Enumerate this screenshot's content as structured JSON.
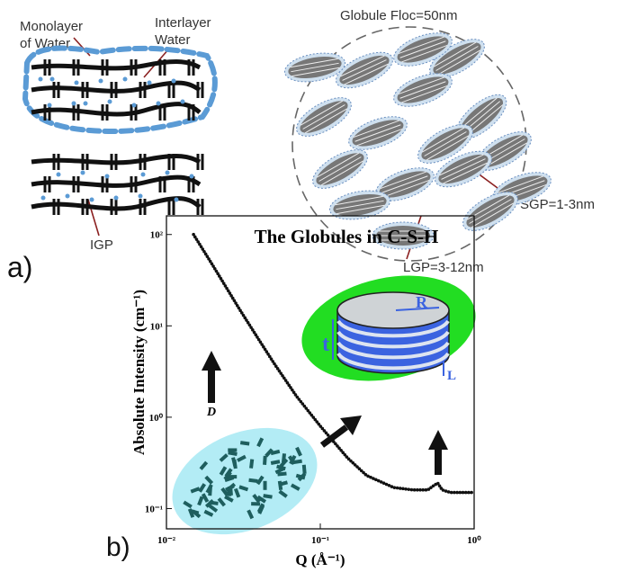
{
  "diagram": {
    "panel_label": "a)",
    "monolayer_label": [
      "Monolayer",
      "of Water"
    ],
    "interlayer_label": [
      "Interlayer",
      "Water"
    ],
    "igp_label": "IGP",
    "floc_label": "Globule Floc=50nm",
    "sgp_label": "SGP=1-3nm",
    "lgp_label": "LGP=3-12nm"
  },
  "chart_data": {
    "type": "line",
    "panel_label": "b)",
    "title": "The Globules in C-S-H",
    "x_label": "Q (Å⁻¹)",
    "y_label": "Absolute Intensity (cm⁻¹)",
    "x": [
      0.015,
      0.02,
      0.03,
      0.04,
      0.05,
      0.07,
      0.1,
      0.15,
      0.2,
      0.3,
      0.4,
      0.5,
      0.55,
      0.58,
      0.62,
      0.7,
      0.8,
      1.0
    ],
    "series": [
      {
        "color": "#111111",
        "values": [
          100,
          46,
          15,
          7,
          3.9,
          1.7,
          0.8,
          0.36,
          0.23,
          0.17,
          0.16,
          0.16,
          0.18,
          0.19,
          0.16,
          0.15,
          0.15,
          0.15
        ]
      }
    ],
    "xlim": [
      0.01,
      1
    ],
    "ylim": [
      0.06,
      160
    ],
    "xticks": [
      {
        "value": 0.01,
        "label": "10⁻²"
      },
      {
        "value": 0.1,
        "label": "10⁻¹"
      },
      {
        "value": 1,
        "label": "10⁰"
      }
    ],
    "yticks": [
      {
        "value": 0.1,
        "label": "10⁻¹"
      },
      {
        "value": 1,
        "label": "10⁰"
      },
      {
        "value": 10,
        "label": "10¹"
      },
      {
        "value": 100,
        "label": "10²"
      }
    ],
    "log_x": true,
    "log_y": true,
    "inset_labels": {
      "d": "D",
      "t": "t",
      "r": "R",
      "l": "L"
    }
  }
}
